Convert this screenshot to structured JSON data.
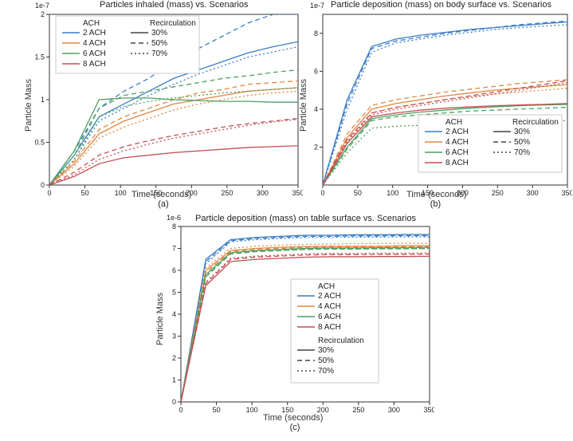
{
  "colors": {
    "ach2": "#3a7cc4",
    "ach4": "#e18640",
    "ach6": "#4fa060",
    "ach8": "#c44e52",
    "axis": "#333333",
    "grid": "#e6e6e6",
    "text": "#222222",
    "bg": "#ffffff"
  },
  "legend": {
    "ach_label": "ACH",
    "recirc_label": "Recirculation",
    "ach_items": [
      "2 ACH",
      "4 ACH",
      "6 ACH",
      "8 ACH"
    ],
    "recirc_items": [
      "30%",
      "50%",
      "70%"
    ]
  },
  "panels": {
    "a": {
      "title": "Particles inhaled (mass) vs. Scenarios",
      "exp": "1e-7",
      "xlabel": "Time (seconds)",
      "ylabel": "Particle Mass",
      "xlim": [
        0,
        350
      ],
      "xticks": [
        0,
        50,
        100,
        150,
        200,
        250,
        300,
        350
      ],
      "ylim": [
        0,
        2.0
      ],
      "yticks": [
        0,
        0.5,
        1.0,
        1.5,
        2.0
      ],
      "sub": "(a)",
      "series": [
        {
          "color": "ach2",
          "dash": "solid",
          "y": [
            0,
            0.35,
            0.8,
            0.95,
            1.1,
            1.25,
            1.35,
            1.45,
            1.55,
            1.62,
            1.68
          ]
        },
        {
          "color": "ach2",
          "dash": "dash",
          "y": [
            0,
            0.4,
            0.9,
            1.1,
            1.25,
            1.45,
            1.6,
            1.75,
            1.9,
            2.0,
            2.07
          ]
        },
        {
          "color": "ach2",
          "dash": "dot",
          "y": [
            0,
            0.3,
            0.75,
            0.9,
            1.05,
            1.18,
            1.3,
            1.4,
            1.5,
            1.56,
            1.62
          ]
        },
        {
          "color": "ach4",
          "dash": "solid",
          "y": [
            0,
            0.25,
            0.6,
            0.75,
            0.85,
            0.95,
            1.0,
            1.05,
            1.1,
            1.12,
            1.14
          ]
        },
        {
          "color": "ach4",
          "dash": "dash",
          "y": [
            0,
            0.28,
            0.65,
            0.8,
            0.9,
            1.0,
            1.08,
            1.12,
            1.18,
            1.2,
            1.22
          ]
        },
        {
          "color": "ach4",
          "dash": "dot",
          "y": [
            0,
            0.22,
            0.55,
            0.68,
            0.78,
            0.88,
            0.95,
            1.0,
            1.05,
            1.08,
            1.1
          ]
        },
        {
          "color": "ach6",
          "dash": "solid",
          "y": [
            0,
            0.4,
            1.0,
            1.02,
            1.02,
            1.0,
            0.99,
            0.98,
            0.98,
            0.97,
            0.97
          ]
        },
        {
          "color": "ach6",
          "dash": "dash",
          "y": [
            0,
            0.35,
            0.9,
            1.05,
            1.1,
            1.15,
            1.2,
            1.25,
            1.28,
            1.32,
            1.35
          ]
        },
        {
          "color": "ach6",
          "dash": "dot",
          "y": [
            0,
            0.3,
            0.8,
            0.92,
            0.98,
            1.02,
            1.05,
            1.08,
            1.1,
            1.12,
            1.14
          ]
        },
        {
          "color": "ach8",
          "dash": "solid",
          "y": [
            0,
            0.1,
            0.25,
            0.32,
            0.35,
            0.38,
            0.4,
            0.42,
            0.44,
            0.45,
            0.46
          ]
        },
        {
          "color": "ach8",
          "dash": "dash",
          "y": [
            0,
            0.15,
            0.35,
            0.45,
            0.52,
            0.58,
            0.63,
            0.68,
            0.72,
            0.75,
            0.78
          ]
        },
        {
          "color": "ach8",
          "dash": "dot",
          "y": [
            0,
            0.12,
            0.3,
            0.4,
            0.48,
            0.55,
            0.6,
            0.65,
            0.7,
            0.74,
            0.77
          ]
        }
      ]
    },
    "b": {
      "title": "Particle deposition (mass) on body surface vs. Scenarios",
      "exp": "1e-7",
      "xlabel": "Time (seconds)",
      "ylabel": "Particle Mass",
      "xlim": [
        0,
        350
      ],
      "xticks": [
        0,
        50,
        100,
        150,
        200,
        250,
        300,
        350
      ],
      "ylim": [
        0,
        9.0
      ],
      "yticks": [
        2,
        4,
        6,
        8
      ],
      "sub": "(b)",
      "series": [
        {
          "color": "ach2",
          "dash": "solid",
          "y": [
            0,
            4.5,
            7.3,
            7.7,
            7.9,
            8.05,
            8.2,
            8.3,
            8.4,
            8.5,
            8.6
          ]
        },
        {
          "color": "ach2",
          "dash": "dash",
          "y": [
            0,
            4.3,
            7.2,
            7.6,
            7.8,
            8.0,
            8.15,
            8.3,
            8.45,
            8.55,
            8.65
          ]
        },
        {
          "color": "ach2",
          "dash": "dot",
          "y": [
            0,
            4.0,
            7.0,
            7.5,
            7.7,
            7.9,
            8.05,
            8.2,
            8.3,
            8.38,
            8.45
          ]
        },
        {
          "color": "ach4",
          "dash": "solid",
          "y": [
            0,
            2.5,
            4.0,
            4.3,
            4.5,
            4.7,
            4.85,
            5.0,
            5.1,
            5.2,
            5.3
          ]
        },
        {
          "color": "ach4",
          "dash": "dash",
          "y": [
            0,
            2.7,
            4.2,
            4.5,
            4.7,
            4.9,
            5.05,
            5.2,
            5.35,
            5.45,
            5.55
          ]
        },
        {
          "color": "ach4",
          "dash": "dot",
          "y": [
            0,
            2.3,
            3.8,
            4.1,
            4.3,
            4.5,
            4.65,
            4.8,
            4.9,
            5.0,
            5.1
          ]
        },
        {
          "color": "ach6",
          "dash": "solid",
          "y": [
            0,
            2.0,
            3.5,
            3.7,
            3.85,
            3.95,
            4.05,
            4.12,
            4.18,
            4.22,
            4.25
          ]
        },
        {
          "color": "ach6",
          "dash": "dash",
          "y": [
            0,
            1.9,
            3.4,
            3.6,
            3.7,
            3.8,
            3.9,
            3.95,
            4.0,
            4.05,
            4.1
          ]
        },
        {
          "color": "ach6",
          "dash": "dot",
          "y": [
            0,
            1.7,
            3.0,
            3.1,
            3.15,
            3.2,
            3.25,
            3.3,
            3.33,
            3.36,
            3.4
          ]
        },
        {
          "color": "ach8",
          "dash": "solid",
          "y": [
            0,
            2.2,
            3.6,
            3.8,
            3.95,
            4.05,
            4.12,
            4.18,
            4.22,
            4.25,
            4.3
          ]
        },
        {
          "color": "ach8",
          "dash": "dash",
          "y": [
            0,
            2.4,
            3.8,
            4.1,
            4.3,
            4.5,
            4.7,
            4.9,
            5.1,
            5.3,
            5.5
          ]
        },
        {
          "color": "ach8",
          "dash": "dot",
          "y": [
            0,
            2.3,
            3.7,
            4.0,
            4.2,
            4.4,
            4.6,
            4.8,
            5.0,
            5.2,
            5.4
          ]
        }
      ]
    },
    "c": {
      "title": "Particle deposition (mass) on table surface vs. Scenarios",
      "exp": "1e-6",
      "xlabel": "Time (seconds)",
      "ylabel": "Particle Mass",
      "xlim": [
        0,
        350
      ],
      "xticks": [
        0,
        50,
        100,
        150,
        200,
        250,
        300,
        350
      ],
      "ylim": [
        0,
        8.0
      ],
      "yticks": [
        0,
        1,
        2,
        3,
        4,
        5,
        6,
        7,
        8
      ],
      "sub": "(c)",
      "series": [
        {
          "color": "ach2",
          "dash": "solid",
          "y": [
            0,
            6.5,
            7.4,
            7.5,
            7.55,
            7.6,
            7.6,
            7.62,
            7.62,
            7.63,
            7.63
          ]
        },
        {
          "color": "ach2",
          "dash": "dash",
          "y": [
            0,
            6.4,
            7.35,
            7.45,
            7.5,
            7.55,
            7.55,
            7.57,
            7.57,
            7.58,
            7.58
          ]
        },
        {
          "color": "ach2",
          "dash": "dot",
          "y": [
            0,
            6.3,
            7.3,
            7.4,
            7.45,
            7.5,
            7.5,
            7.52,
            7.52,
            7.53,
            7.53
          ]
        },
        {
          "color": "ach4",
          "dash": "solid",
          "y": [
            0,
            6.0,
            6.9,
            7.0,
            7.05,
            7.08,
            7.1,
            7.1,
            7.1,
            7.12,
            7.12
          ]
        },
        {
          "color": "ach4",
          "dash": "dash",
          "y": [
            0,
            5.9,
            6.85,
            6.95,
            7.0,
            7.05,
            7.07,
            7.07,
            7.07,
            7.08,
            7.08
          ]
        },
        {
          "color": "ach4",
          "dash": "dot",
          "y": [
            0,
            6.1,
            7.0,
            7.1,
            7.15,
            7.18,
            7.2,
            7.22,
            7.22,
            7.23,
            7.23
          ]
        },
        {
          "color": "ach6",
          "dash": "solid",
          "y": [
            0,
            5.8,
            6.8,
            6.9,
            6.95,
            7.0,
            7.02,
            7.02,
            7.03,
            7.03,
            7.04
          ]
        },
        {
          "color": "ach6",
          "dash": "dash",
          "y": [
            0,
            5.7,
            6.75,
            6.85,
            6.9,
            6.95,
            6.97,
            6.97,
            6.98,
            6.98,
            6.99
          ]
        },
        {
          "color": "ach6",
          "dash": "dot",
          "y": [
            0,
            5.75,
            6.78,
            6.88,
            6.92,
            6.96,
            6.98,
            6.98,
            6.99,
            6.99,
            7.0
          ]
        },
        {
          "color": "ach8",
          "dash": "solid",
          "y": [
            0,
            5.3,
            6.4,
            6.5,
            6.55,
            6.6,
            6.62,
            6.62,
            6.63,
            6.63,
            6.64
          ]
        },
        {
          "color": "ach8",
          "dash": "dash",
          "y": [
            0,
            5.4,
            6.5,
            6.6,
            6.65,
            6.7,
            6.72,
            6.72,
            6.73,
            6.73,
            6.74
          ]
        },
        {
          "color": "ach8",
          "dash": "dot",
          "y": [
            0,
            5.45,
            6.55,
            6.65,
            6.7,
            6.75,
            6.77,
            6.77,
            6.78,
            6.78,
            6.79
          ]
        }
      ]
    }
  }
}
